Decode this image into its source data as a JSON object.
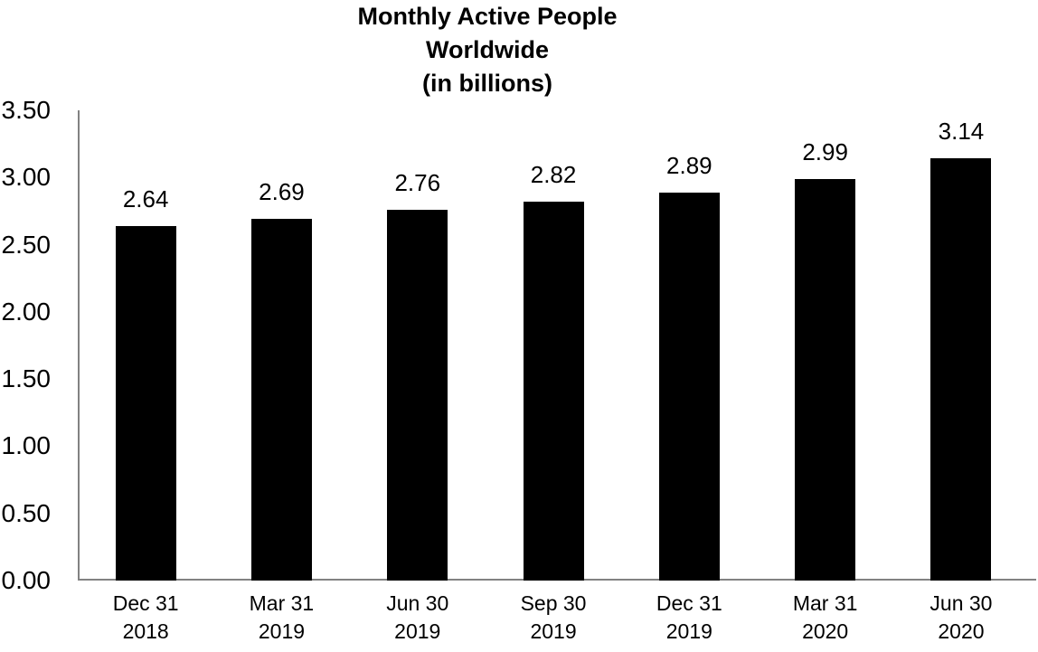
{
  "chart_data": {
    "type": "bar",
    "title": "Monthly Active People Worldwide (in billions)",
    "title_lines": [
      "Monthly Active People",
      "Worldwide",
      "(in billions)"
    ],
    "categories": [
      {
        "line1": "Dec 31",
        "line2": "2018"
      },
      {
        "line1": "Mar 31",
        "line2": "2019"
      },
      {
        "line1": "Jun 30",
        "line2": "2019"
      },
      {
        "line1": "Sep 30",
        "line2": "2019"
      },
      {
        "line1": "Dec 31",
        "line2": "2019"
      },
      {
        "line1": "Mar 31",
        "line2": "2020"
      },
      {
        "line1": "Jun 30",
        "line2": "2020"
      }
    ],
    "values": [
      2.64,
      2.69,
      2.76,
      2.82,
      2.89,
      2.99,
      3.14
    ],
    "data_labels": [
      "2.64",
      "2.69",
      "2.76",
      "2.82",
      "2.89",
      "2.99",
      "3.14"
    ],
    "ytick_labels": [
      "3.50",
      "3.00",
      "2.50",
      "2.00",
      "1.50",
      "1.00",
      "0.50",
      "0.00"
    ],
    "ylim": [
      0,
      3.5
    ],
    "xlabel": "",
    "ylabel": "",
    "grid": false,
    "legend": false,
    "bar_color": "#000000",
    "axis_color": "#828282",
    "text_color": "#000000",
    "background_color": "#ffffff"
  }
}
